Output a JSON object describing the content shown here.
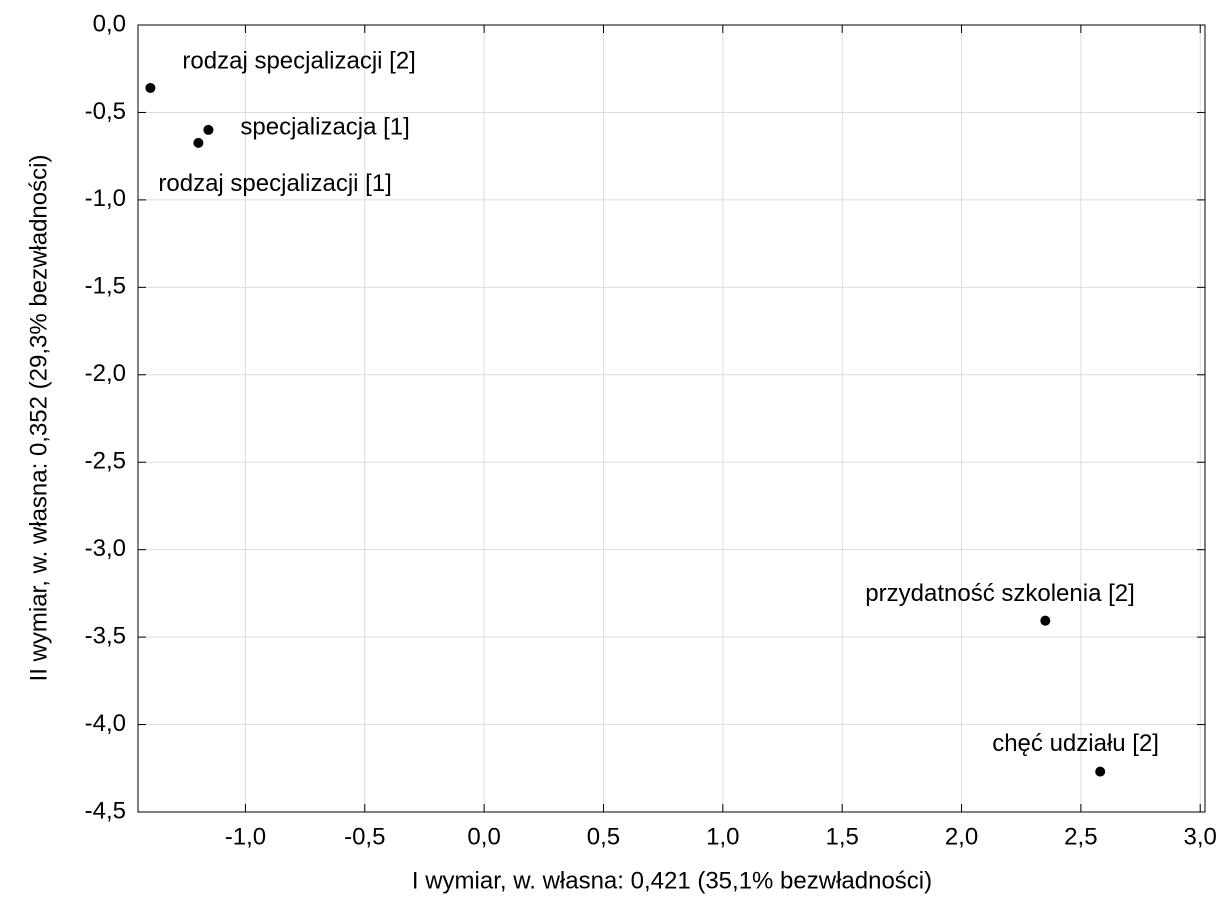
{
  "chart_data": {
    "type": "scatter",
    "xlabel": "I wymiar, w. własna: 0,421 (35,1% bezwładności)",
    "ylabel": "II wymiar, w. własna: 0,352 (29,3% bezwładności)",
    "points": [
      {
        "label": "rodzaj specjalizacji [2]",
        "x": -1.398,
        "y": -0.36
      },
      {
        "label": "specjalizacja [1]",
        "x": -1.155,
        "y": -0.6
      },
      {
        "label": "rodzaj specjalizacji [1]",
        "x": -1.197,
        "y": -0.674
      },
      {
        "label": "przydatność szkolenia [2]",
        "x": 2.351,
        "y": -3.406
      },
      {
        "label": "chęć udziału [2]",
        "x": 2.581,
        "y": -4.269
      }
    ],
    "color": "#000000",
    "xlim": [
      -1.45,
      3.02
    ],
    "ylim": [
      -4.5,
      0
    ],
    "xticks": [
      {
        "value": -1,
        "label": "-1,0"
      },
      {
        "value": -0.5,
        "label": "-0,5"
      },
      {
        "value": 0,
        "label": "0,0"
      },
      {
        "value": 0.5,
        "label": "0,5"
      },
      {
        "value": 1,
        "label": "1,0"
      },
      {
        "value": 1.5,
        "label": "1,5"
      },
      {
        "value": 2,
        "label": "2,0"
      },
      {
        "value": 2.5,
        "label": "2,5"
      },
      {
        "value": 3,
        "label": "3,0"
      }
    ],
    "yticks": [
      {
        "value": 0,
        "label": "0,0"
      },
      {
        "value": -0.5,
        "label": "-0,5"
      },
      {
        "value": -1,
        "label": "-1,0"
      },
      {
        "value": -1.5,
        "label": "-1,5"
      },
      {
        "value": -2,
        "label": "-2,0"
      },
      {
        "value": -2.5,
        "label": "-2,5"
      },
      {
        "value": -3,
        "label": "-3,0"
      },
      {
        "value": -3.5,
        "label": "-3,5"
      },
      {
        "value": -4,
        "label": "-4,0"
      },
      {
        "value": -4.5,
        "label": "-4,5"
      }
    ],
    "grid": true
  }
}
